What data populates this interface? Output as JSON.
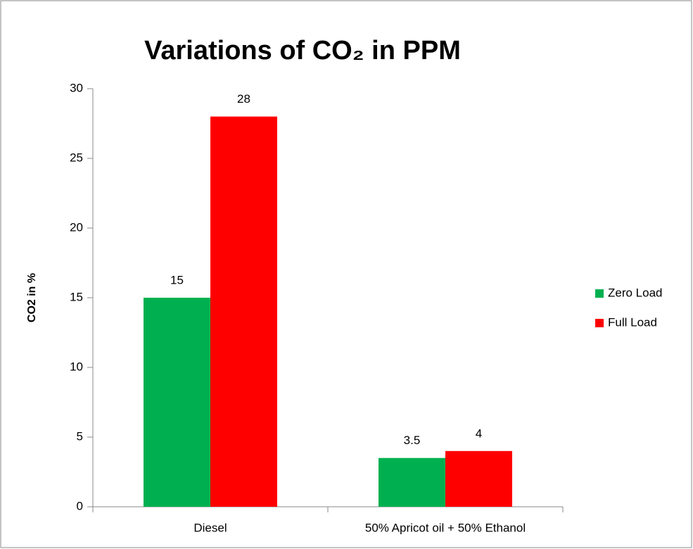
{
  "chart_data": {
    "type": "bar",
    "title": "Variations of CO₂ in PPM",
    "y_label": "CO2 in %",
    "categories": [
      "Diesel",
      "50% Apricot oil + 50% Ethanol"
    ],
    "series": [
      {
        "name": "Zero Load",
        "color": "#00b050",
        "values": [
          15,
          3.5
        ]
      },
      {
        "name": "Full Load",
        "color": "#ff0000",
        "values": [
          28,
          4
        ]
      }
    ],
    "ylim": [
      0,
      30
    ],
    "yticks": [
      0,
      5,
      10,
      15,
      20,
      25,
      30
    ],
    "grid": false,
    "legend": "right"
  }
}
